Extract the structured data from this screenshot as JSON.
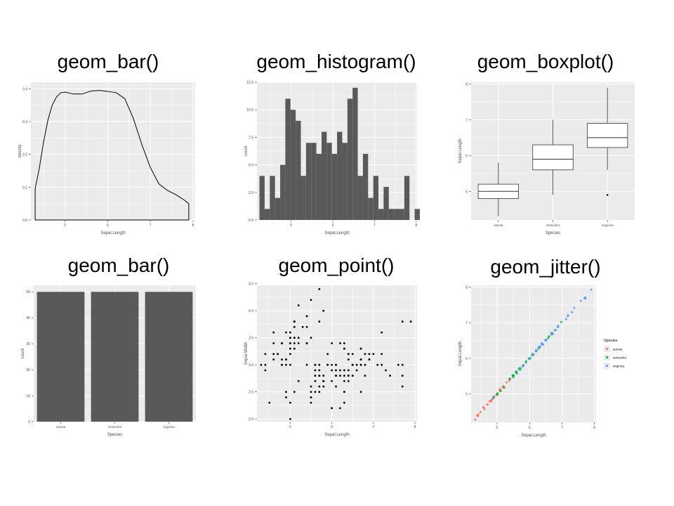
{
  "titles": [
    "geom_bar()",
    "geom_histogram()",
    "geom_boxplot()",
    "geom_bar()",
    "geom_point()",
    "geom_jitter()"
  ],
  "colors": {
    "panel_bg": "#ebebeb",
    "grid": "#ffffff",
    "bar_fill": "#595959",
    "setosa": "#f8766d",
    "versicolor": "#00ba38",
    "virginica": "#619cff"
  },
  "chart_data": [
    {
      "type": "area",
      "title": "geom_bar()",
      "xlabel": "Sepal.Length",
      "ylabel": "density",
      "xlim": [
        4.2,
        8.05
      ],
      "ylim": [
        0,
        0.42
      ],
      "xticks": [
        5,
        6,
        7,
        8
      ],
      "yticks": [
        0.0,
        0.1,
        0.2,
        0.3,
        0.4
      ],
      "ytick_labels": [
        "0.0",
        "0.1",
        "0.2",
        "0.3",
        "0.4"
      ],
      "x": [
        4.3,
        4.4,
        4.5,
        4.6,
        4.7,
        4.8,
        4.9,
        5.0,
        5.2,
        5.4,
        5.6,
        5.8,
        6.0,
        6.2,
        6.4,
        6.6,
        6.8,
        7.0,
        7.2,
        7.4,
        7.6,
        7.8,
        7.9
      ],
      "y": [
        0.095,
        0.16,
        0.24,
        0.305,
        0.35,
        0.375,
        0.388,
        0.39,
        0.384,
        0.384,
        0.393,
        0.395,
        0.392,
        0.388,
        0.37,
        0.31,
        0.23,
        0.16,
        0.11,
        0.09,
        0.077,
        0.06,
        0.05
      ]
    },
    {
      "type": "bar",
      "title": "geom_histogram()",
      "xlabel": "Sepal.Length",
      "ylabel": "count",
      "xlim": [
        4.18,
        8.02
      ],
      "ylim": [
        0,
        12.5
      ],
      "xticks": [
        5,
        6,
        7,
        8
      ],
      "yticks": [
        0.0,
        2.5,
        5.0,
        7.5,
        10.0,
        12.5
      ],
      "ytick_labels": [
        "0.0",
        "2.5",
        "5.0",
        "7.5",
        "10.0",
        "12.5"
      ],
      "bin_start": 4.24,
      "bin_width": 0.1241,
      "counts": [
        4,
        1,
        4,
        2,
        5,
        11,
        10,
        9,
        4,
        7,
        7,
        6,
        8,
        7,
        6,
        8,
        7,
        11,
        12,
        4,
        6,
        2,
        4,
        1,
        3,
        1,
        1,
        1,
        4,
        0,
        1
      ]
    },
    {
      "type": "boxplot",
      "title": "geom_boxplot()",
      "xlabel": "Species",
      "ylabel": "Sepal.Length",
      "categories": [
        "setosa",
        "versicolor",
        "virginica"
      ],
      "ylim": [
        4.2,
        8.05
      ],
      "yticks": [
        5,
        6,
        7,
        8
      ],
      "boxes": [
        {
          "min": 4.3,
          "q1": 4.8,
          "median": 5.0,
          "q3": 5.2,
          "max": 5.8,
          "outliers": []
        },
        {
          "min": 4.9,
          "q1": 5.6,
          "median": 5.9,
          "q3": 6.3,
          "max": 7.0,
          "outliers": []
        },
        {
          "min": 5.6,
          "q1": 6.225,
          "median": 6.5,
          "q3": 6.9,
          "max": 7.9,
          "outliers": [
            4.9
          ]
        }
      ]
    },
    {
      "type": "bar",
      "title": "geom_bar()",
      "xlabel": "Species",
      "ylabel": "count",
      "categories": [
        "setosa",
        "versicolor",
        "virginica"
      ],
      "values": [
        50,
        50,
        50
      ],
      "ylim": [
        0,
        52.5
      ],
      "yticks": [
        0,
        10,
        20,
        30,
        40,
        50
      ]
    },
    {
      "type": "scatter",
      "title": "geom_point()",
      "xlabel": "Sepal.Length",
      "ylabel": "Sepal.Width",
      "xlim": [
        4.2,
        8.05
      ],
      "ylim": [
        1.95,
        4.47
      ],
      "xticks": [
        5,
        6,
        7,
        8
      ],
      "yticks": [
        2.0,
        2.5,
        3.0,
        3.5,
        4.0,
        4.5
      ],
      "ytick_labels": [
        "2.0",
        "2.5",
        "3.0",
        "3.5",
        "4.0",
        "4.5"
      ],
      "x": [
        5.1,
        4.9,
        4.7,
        4.6,
        5.0,
        5.4,
        4.6,
        5.0,
        4.4,
        4.9,
        5.4,
        4.8,
        4.8,
        4.3,
        5.8,
        5.7,
        5.4,
        5.1,
        5.7,
        5.1,
        5.4,
        5.1,
        4.6,
        5.1,
        4.8,
        5.0,
        5.0,
        5.2,
        5.2,
        4.7,
        4.8,
        5.4,
        5.2,
        5.5,
        4.9,
        5.0,
        5.5,
        4.9,
        4.4,
        5.1,
        5.0,
        4.5,
        4.4,
        5.0,
        5.1,
        4.8,
        5.1,
        4.6,
        5.3,
        5.0,
        7.0,
        6.4,
        6.9,
        5.5,
        6.5,
        5.7,
        6.3,
        4.9,
        6.6,
        5.2,
        5.0,
        5.9,
        6.0,
        6.1,
        5.6,
        6.7,
        5.6,
        5.8,
        6.2,
        5.6,
        5.9,
        6.1,
        6.3,
        6.1,
        6.4,
        6.6,
        6.8,
        6.7,
        6.0,
        5.7,
        5.5,
        5.5,
        5.8,
        6.0,
        5.4,
        6.0,
        6.7,
        6.3,
        5.6,
        5.5,
        5.5,
        6.1,
        5.8,
        5.0,
        5.6,
        5.7,
        5.7,
        6.2,
        5.1,
        5.7,
        6.3,
        5.8,
        7.1,
        6.3,
        6.5,
        7.6,
        4.9,
        7.3,
        6.7,
        7.2,
        6.5,
        6.4,
        6.8,
        5.7,
        5.8,
        6.4,
        6.5,
        7.7,
        7.7,
        6.0,
        6.9,
        5.6,
        7.7,
        6.3,
        6.7,
        7.2,
        6.2,
        6.1,
        6.4,
        7.2,
        7.4,
        7.9,
        6.4,
        6.3,
        6.1,
        7.7,
        6.3,
        6.4,
        6.0,
        6.9,
        6.7,
        6.9,
        5.8,
        6.8,
        6.7,
        6.7,
        6.3,
        6.5,
        6.2,
        5.9
      ],
      "y": [
        3.5,
        3.0,
        3.2,
        3.1,
        3.6,
        3.9,
        3.4,
        3.4,
        2.9,
        3.1,
        3.7,
        3.4,
        3.0,
        3.0,
        4.0,
        4.4,
        3.9,
        3.5,
        3.8,
        3.8,
        3.4,
        3.7,
        3.6,
        3.3,
        3.4,
        3.0,
        3.4,
        3.5,
        3.4,
        3.2,
        3.1,
        3.4,
        4.1,
        4.2,
        3.1,
        3.2,
        3.5,
        3.6,
        3.0,
        3.4,
        3.5,
        2.3,
        3.2,
        3.5,
        3.8,
        3.0,
        3.8,
        3.2,
        3.7,
        3.3,
        3.2,
        3.2,
        3.1,
        2.3,
        2.8,
        2.8,
        3.3,
        2.4,
        2.9,
        2.7,
        2.0,
        3.0,
        2.2,
        2.9,
        2.9,
        3.1,
        3.0,
        2.7,
        2.2,
        2.5,
        3.2,
        2.8,
        2.5,
        2.8,
        2.9,
        3.0,
        2.8,
        3.0,
        2.9,
        2.6,
        2.4,
        2.4,
        2.7,
        2.7,
        3.0,
        3.4,
        3.1,
        2.3,
        3.0,
        2.5,
        2.6,
        3.0,
        2.6,
        2.3,
        2.7,
        3.0,
        2.9,
        2.9,
        2.5,
        2.8,
        3.3,
        2.7,
        3.0,
        2.9,
        3.0,
        3.0,
        2.5,
        2.9,
        2.5,
        3.6,
        3.2,
        2.7,
        3.0,
        2.5,
        2.8,
        3.2,
        3.0,
        3.8,
        2.6,
        2.2,
        3.2,
        2.8,
        2.8,
        2.7,
        3.3,
        3.2,
        2.8,
        3.0,
        2.8,
        3.0,
        2.8,
        3.8,
        2.8,
        2.8,
        2.6,
        3.0,
        3.4,
        3.1,
        3.0,
        3.1,
        3.1,
        3.1,
        2.7,
        3.2,
        3.3,
        3.0,
        2.5,
        3.0,
        3.4,
        3.0
      ]
    },
    {
      "type": "scatter",
      "title": "geom_jitter()",
      "xlabel": "Sepal.Length",
      "ylabel": "Sepal.Length",
      "xlim": [
        4.2,
        8.05
      ],
      "ylim": [
        4.2,
        8.05
      ],
      "xticks": [
        5,
        6,
        7,
        8
      ],
      "yticks": [
        5,
        6,
        7,
        8
      ],
      "legend": {
        "title": "Species",
        "entries": [
          "setosa",
          "versicolor",
          "virginica"
        ],
        "position": "right"
      },
      "x": [
        5.1,
        4.9,
        4.7,
        4.6,
        5.0,
        5.4,
        4.6,
        5.0,
        4.4,
        4.9,
        5.4,
        4.8,
        4.8,
        4.3,
        5.8,
        5.7,
        5.4,
        5.1,
        5.7,
        5.1,
        5.4,
        5.1,
        4.6,
        5.1,
        4.8,
        5.0,
        5.0,
        5.2,
        5.2,
        4.7,
        4.8,
        5.4,
        5.2,
        5.5,
        4.9,
        5.0,
        5.5,
        4.9,
        4.4,
        5.1,
        5.0,
        4.5,
        4.4,
        5.0,
        5.1,
        4.8,
        5.1,
        4.6,
        5.3,
        5.0,
        7.0,
        6.4,
        6.9,
        5.5,
        6.5,
        5.7,
        6.3,
        4.9,
        6.6,
        5.2,
        5.0,
        5.9,
        6.0,
        6.1,
        5.6,
        6.7,
        5.6,
        5.8,
        6.2,
        5.6,
        5.9,
        6.1,
        6.3,
        6.1,
        6.4,
        6.6,
        6.8,
        6.7,
        6.0,
        5.7,
        5.5,
        5.5,
        5.8,
        6.0,
        5.4,
        6.0,
        6.7,
        6.3,
        5.6,
        5.5,
        5.5,
        6.1,
        5.8,
        5.0,
        5.6,
        5.7,
        5.7,
        6.2,
        5.1,
        5.7,
        6.3,
        5.8,
        7.1,
        6.3,
        6.5,
        7.6,
        4.9,
        7.3,
        6.7,
        7.2,
        6.5,
        6.4,
        6.8,
        5.7,
        5.8,
        6.4,
        6.5,
        7.7,
        7.7,
        6.0,
        6.9,
        5.6,
        7.7,
        6.3,
        6.7,
        7.2,
        6.2,
        6.1,
        6.4,
        7.2,
        7.4,
        7.9,
        6.4,
        6.3,
        6.1,
        7.7,
        6.3,
        6.4,
        6.0,
        6.9,
        6.7,
        6.9,
        5.8,
        6.8,
        6.7,
        6.7,
        6.3,
        6.5,
        6.2,
        5.9
      ],
      "group_sizes": [
        50,
        50,
        50
      ],
      "groups": [
        "setosa",
        "versicolor",
        "virginica"
      ]
    }
  ]
}
